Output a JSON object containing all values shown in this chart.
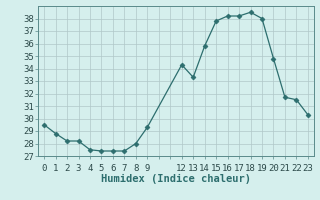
{
  "x": [
    0,
    1,
    2,
    3,
    4,
    5,
    6,
    7,
    8,
    9,
    12,
    13,
    14,
    15,
    16,
    17,
    18,
    19,
    20,
    21,
    22,
    23
  ],
  "y": [
    29.5,
    28.8,
    28.2,
    28.2,
    27.5,
    27.4,
    27.4,
    27.4,
    28.0,
    29.3,
    34.3,
    33.3,
    35.8,
    37.8,
    38.2,
    38.2,
    38.5,
    38.0,
    34.8,
    31.7,
    31.5,
    30.3
  ],
  "line_color": "#2d6e6e",
  "marker": "D",
  "marker_size": 2.5,
  "bg_color": "#d5efed",
  "grid_color": "#b0c8c8",
  "xlabel": "Humidex (Indice chaleur)",
  "ylim": [
    27,
    39
  ],
  "yticks": [
    27,
    28,
    29,
    30,
    31,
    32,
    33,
    34,
    35,
    36,
    37,
    38
  ],
  "label_fontsize": 7.5,
  "tick_fontsize": 6.5
}
